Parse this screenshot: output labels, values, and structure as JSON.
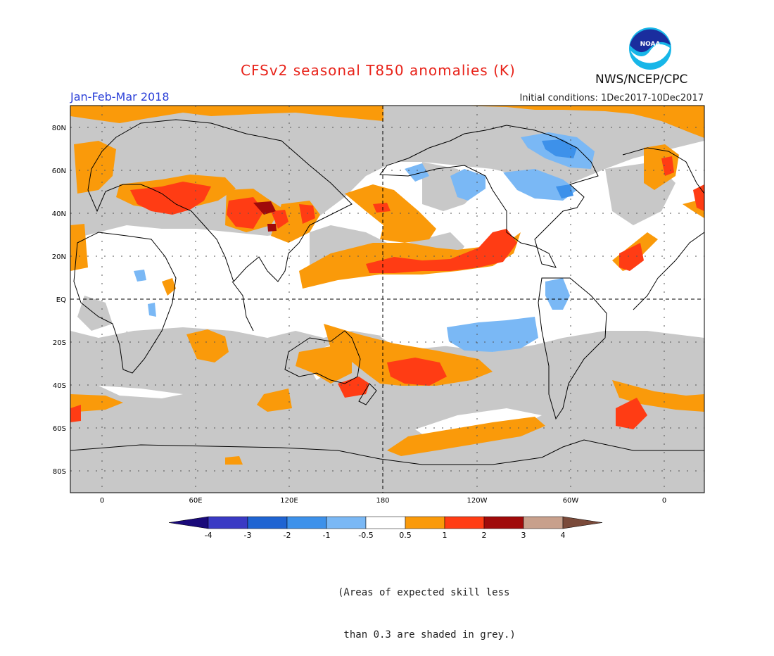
{
  "header": {
    "title": "CFSv2 seasonal T850 anomalies (K)",
    "period": "Jan-Feb-Mar 2018",
    "initial_conditions": "Initial conditions: 1Dec2017-10Dec2017",
    "agency": "NWS/NCEP/CPC",
    "logo_text": "NOAA"
  },
  "map": {
    "lat_labels": [
      "80N",
      "60N",
      "40N",
      "20N",
      "EQ",
      "20S",
      "40S",
      "60S",
      "80S"
    ],
    "lon_labels": [
      "0",
      "60E",
      "120E",
      "180",
      "120W",
      "60W",
      "0"
    ]
  },
  "colorbar": {
    "unit": "K",
    "tick_labels": [
      "-4",
      "-3",
      "-2",
      "-1",
      "-0.5",
      "0.5",
      "1",
      "2",
      "3",
      "4"
    ],
    "colors": {
      "below_-4": "#1a0a7a",
      "-4_-3": "#3a3ac4",
      "-3_-2": "#1f64d2",
      "-2_-1": "#3d91ea",
      "-1_-0.5": "#7ab8f5",
      "-0.5_0.5": "#ffffff",
      "0.5_1": "#fa9a0a",
      "1_2": "#ff3c14",
      "2_3": "#a00a0a",
      "3_4": "#c8a08c",
      "above_4": "#7a4a3a"
    },
    "low_skill_color": "#c8c8c8"
  },
  "footnote": {
    "line1": "(Areas of expected skill less",
    "line2": " than 0.3 are shaded in grey.)"
  }
}
